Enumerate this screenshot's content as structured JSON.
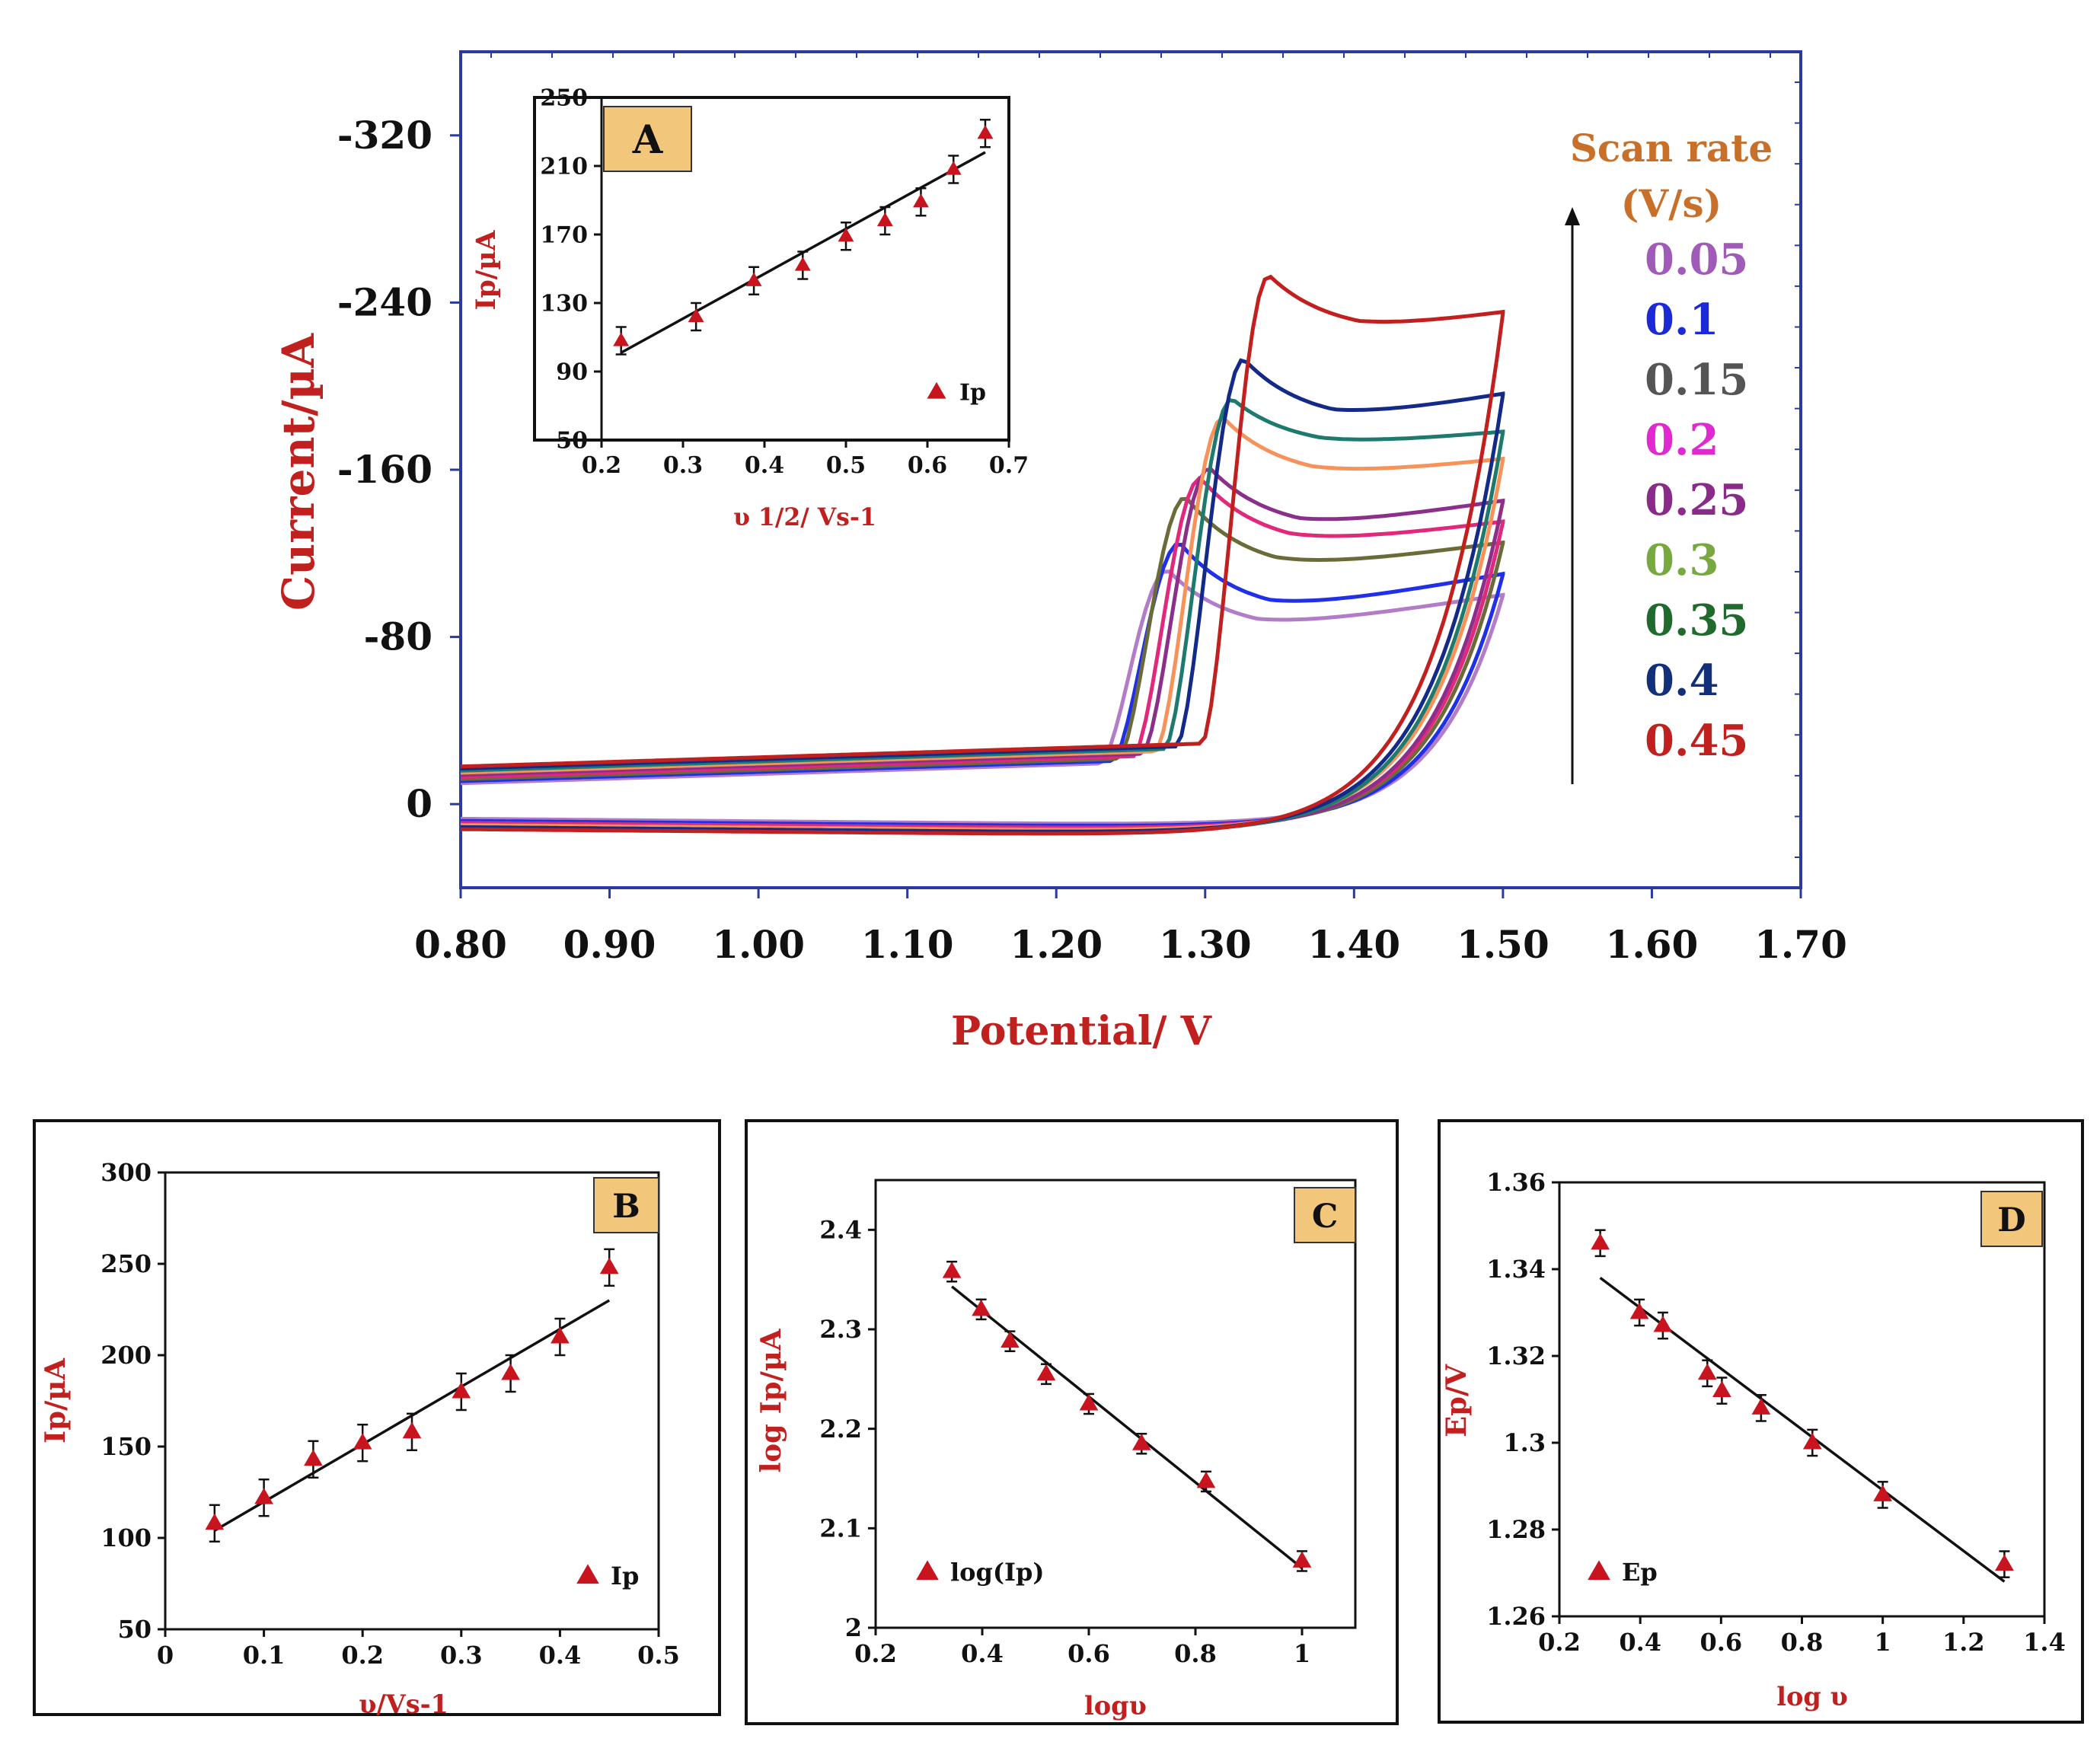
{
  "chart_data": [
    {
      "id": "main",
      "type": "line",
      "title": "",
      "xlabel": "Potential/ V",
      "ylabel": "Current/µA",
      "xlim": [
        0.8,
        1.7
      ],
      "ylim": [
        -360,
        40
      ],
      "x_ticks": [
        0.8,
        0.9,
        1.0,
        1.1,
        1.2,
        1.3,
        1.4,
        1.5,
        1.6,
        1.7
      ],
      "x_tick_labels": [
        "0.80",
        "0.90",
        "1.00",
        "1.10",
        "1.20",
        "1.30",
        "1.40",
        "1.50",
        "1.60",
        "1.70"
      ],
      "y_ticks": [
        -320,
        -240,
        -160,
        -80,
        0
      ],
      "y_tick_labels": [
        "-320",
        "-240",
        "-160",
        "-80",
        "0"
      ],
      "legend_title": "Scan rate (V/s)",
      "legend_title_lines": [
        "Scan rate",
        "(V/s)"
      ],
      "legend_placement": "right",
      "series": [
        {
          "name": "0.05",
          "color": "#b27cc8",
          "peak_x": 1.275,
          "peak_i": -112,
          "plateau_i": -82,
          "end_i": -100,
          "forward_base": -10,
          "reverse_base": 7
        },
        {
          "name": "0.1",
          "color": "#2030e8",
          "peak_x": 1.283,
          "peak_i": -125,
          "plateau_i": -90,
          "end_i": -110,
          "forward_base": -11,
          "reverse_base": 8
        },
        {
          "name": "0.15",
          "color": "#6b6b3a",
          "peak_x": 1.287,
          "peak_i": -147,
          "plateau_i": -110,
          "end_i": -125,
          "forward_base": -12,
          "reverse_base": 9
        },
        {
          "name": "0.2",
          "color": "#e2287a",
          "peak_x": 1.297,
          "peak_i": -156,
          "plateau_i": -122,
          "end_i": -135,
          "forward_base": -13,
          "reverse_base": 9
        },
        {
          "name": "0.25",
          "color": "#8b2f8b",
          "peak_x": 1.303,
          "peak_i": -161,
          "plateau_i": -130,
          "end_i": -145,
          "forward_base": -14,
          "reverse_base": 10
        },
        {
          "name": "0.3",
          "color": "#f7935a",
          "peak_x": 1.312,
          "peak_i": -185,
          "plateau_i": -155,
          "end_i": -165,
          "forward_base": -15,
          "reverse_base": 10
        },
        {
          "name": "0.35",
          "color": "#1e7a6e",
          "peak_x": 1.318,
          "peak_i": -194,
          "plateau_i": -170,
          "end_i": -178,
          "forward_base": -16,
          "reverse_base": 11
        },
        {
          "name": "0.4",
          "color": "#142a88",
          "peak_x": 1.326,
          "peak_i": -213,
          "plateau_i": -182,
          "end_i": -196,
          "forward_base": -17,
          "reverse_base": 11
        },
        {
          "name": "0.45",
          "color": "#c0201e",
          "peak_x": 1.343,
          "peak_i": -253,
          "plateau_i": -225,
          "end_i": -235,
          "forward_base": -18,
          "reverse_base": 12
        }
      ],
      "legend_entries": [
        {
          "label": "0.05",
          "color": "#a05ab8"
        },
        {
          "label": "0.1",
          "color": "#1c2ad6"
        },
        {
          "label": "0.15",
          "color": "#555555"
        },
        {
          "label": "0.2",
          "color": "#e02ad0"
        },
        {
          "label": "0.25",
          "color": "#8a2b8a"
        },
        {
          "label": "0.3",
          "color": "#78a840"
        },
        {
          "label": "0.35",
          "color": "#1f6b2e"
        },
        {
          "label": "0.4",
          "color": "#12307a"
        },
        {
          "label": "0.45",
          "color": "#c0201e"
        }
      ],
      "legend_title_color": "#c8702a"
    },
    {
      "id": "A",
      "type": "scatter",
      "panel_label": "A",
      "xlabel": "υ 1/2/ Vs-1",
      "ylabel": "Ip/µA",
      "xlim": [
        0.2,
        0.7
      ],
      "ylim": [
        50,
        250
      ],
      "x_ticks": [
        0.2,
        0.3,
        0.4,
        0.5,
        0.6,
        0.7
      ],
      "y_ticks": [
        50,
        90,
        130,
        170,
        210,
        250
      ],
      "legend": "Ip",
      "legend_placement": "bottom-right",
      "x": [
        0.224,
        0.316,
        0.387,
        0.447,
        0.5,
        0.548,
        0.592,
        0.632,
        0.671
      ],
      "y": [
        108,
        122,
        143,
        152,
        169,
        178,
        189,
        208,
        229
      ],
      "error": [
        8,
        8,
        8,
        8,
        8,
        8,
        8,
        8,
        8
      ],
      "fit": {
        "x": [
          0.224,
          0.671
        ],
        "y": [
          101,
          218
        ]
      }
    },
    {
      "id": "B",
      "type": "scatter",
      "panel_label": "B",
      "xlabel": "υ/Vs-1",
      "ylabel": "Ip/µA",
      "xlim": [
        0,
        0.5
      ],
      "ylim": [
        50,
        300
      ],
      "x_ticks": [
        0,
        0.1,
        0.2,
        0.3,
        0.4,
        0.5
      ],
      "y_ticks": [
        50,
        100,
        150,
        200,
        250,
        300
      ],
      "legend": "Ip",
      "legend_placement": "bottom-right",
      "x": [
        0.05,
        0.1,
        0.15,
        0.2,
        0.25,
        0.3,
        0.35,
        0.4,
        0.45
      ],
      "y": [
        108,
        122,
        143,
        152,
        158,
        180,
        190,
        210,
        248
      ],
      "error": [
        10,
        10,
        10,
        10,
        10,
        10,
        10,
        10,
        10
      ],
      "fit": {
        "x": [
          0.05,
          0.45
        ],
        "y": [
          104,
          230
        ]
      }
    },
    {
      "id": "C",
      "type": "scatter",
      "panel_label": "C",
      "xlabel": "logυ",
      "ylabel": "log Ip/µA",
      "xlim": [
        0.2,
        1.1
      ],
      "ylim": [
        2.0,
        2.45
      ],
      "x_ticks": [
        0.2,
        0.4,
        0.6,
        0.8,
        1.0
      ],
      "x_tick_labels": [
        "0.2",
        "0.4",
        "0.6",
        "0.8",
        "1"
      ],
      "y_ticks": [
        2.0,
        2.1,
        2.2,
        2.3,
        2.4
      ],
      "y_tick_labels": [
        "2",
        "2.1",
        "2.2",
        "2.3",
        "2.4"
      ],
      "legend": "log(Ip)",
      "legend_placement": "bottom-left",
      "x": [
        0.343,
        0.398,
        0.452,
        0.52,
        0.6,
        0.699,
        0.82,
        1.0
      ],
      "y": [
        2.358,
        2.32,
        2.288,
        2.255,
        2.225,
        2.185,
        2.147,
        2.067
      ],
      "error": [
        0.01,
        0.01,
        0.01,
        0.01,
        0.01,
        0.01,
        0.01,
        0.01
      ],
      "fit": {
        "x": [
          0.343,
          1.0
        ],
        "y": [
          2.343,
          2.06
        ]
      }
    },
    {
      "id": "D",
      "type": "scatter",
      "panel_label": "D",
      "xlabel": "log υ",
      "ylabel": "Ep/V",
      "xlim": [
        0.2,
        1.4
      ],
      "ylim": [
        1.26,
        1.36
      ],
      "x_ticks": [
        0.2,
        0.4,
        0.6,
        0.8,
        1.0,
        1.2,
        1.4
      ],
      "x_tick_labels": [
        "0.2",
        "0.4",
        "0.6",
        "0.8",
        "1",
        "1.2",
        "1.4"
      ],
      "y_ticks": [
        1.26,
        1.28,
        1.3,
        1.32,
        1.34,
        1.36
      ],
      "y_tick_labels": [
        "1.26",
        "1.28",
        "1.3",
        "1.32",
        "1.34",
        "1.36"
      ],
      "legend": "Ep",
      "legend_placement": "bottom-left",
      "x": [
        0.301,
        0.398,
        0.456,
        0.566,
        0.602,
        0.699,
        0.826,
        1.0,
        1.301
      ],
      "y": [
        1.346,
        1.33,
        1.327,
        1.316,
        1.312,
        1.308,
        1.3,
        1.288,
        1.272
      ],
      "error": [
        0.003,
        0.003,
        0.003,
        0.003,
        0.003,
        0.003,
        0.003,
        0.003,
        0.003
      ],
      "fit": {
        "x": [
          0.301,
          1.301
        ],
        "y": [
          1.338,
          1.268
        ]
      }
    }
  ],
  "colors": {
    "axis_blue": "#2b3a9e",
    "axis_black": "#111111",
    "label_red": "#c0201e",
    "marker_red": "#c8141e",
    "panel_label_bg": "#f3c77b"
  }
}
